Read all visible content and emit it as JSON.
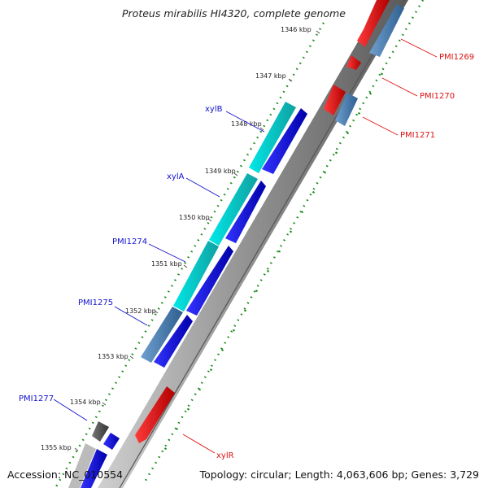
{
  "title": "Proteus mirabilis HI4320, complete genome",
  "footer": {
    "accession": "Accession: NC_010554",
    "summary": "Topology: circular; Length: 4,063,606 bp; Genes: 3,729"
  },
  "ticks": [
    "1346 kbp",
    "1347 kbp",
    "1348 kbp",
    "1349 kbp",
    "1350 kbp",
    "1351 kbp",
    "1352 kbp",
    "1353 kbp",
    "1354 kbp",
    "1355 kbp"
  ],
  "gene_labels": [
    "PMI1269",
    "PMI1270",
    "PMI1271",
    "xylB",
    "xylA",
    "PMI1274",
    "PMI1275",
    "PMI1277",
    "xylR"
  ],
  "colors": {
    "forward_strand": "#0000ee",
    "reverse_strand": "#ee0000",
    "blue_label": "#1111cc",
    "red_label": "#dd1111",
    "cyan_feature": "#22cccc",
    "steel_feature": "#4a7fb0",
    "grey_feature": "#555555",
    "backbone": "#808080",
    "dots": "#1a8a1a"
  }
}
